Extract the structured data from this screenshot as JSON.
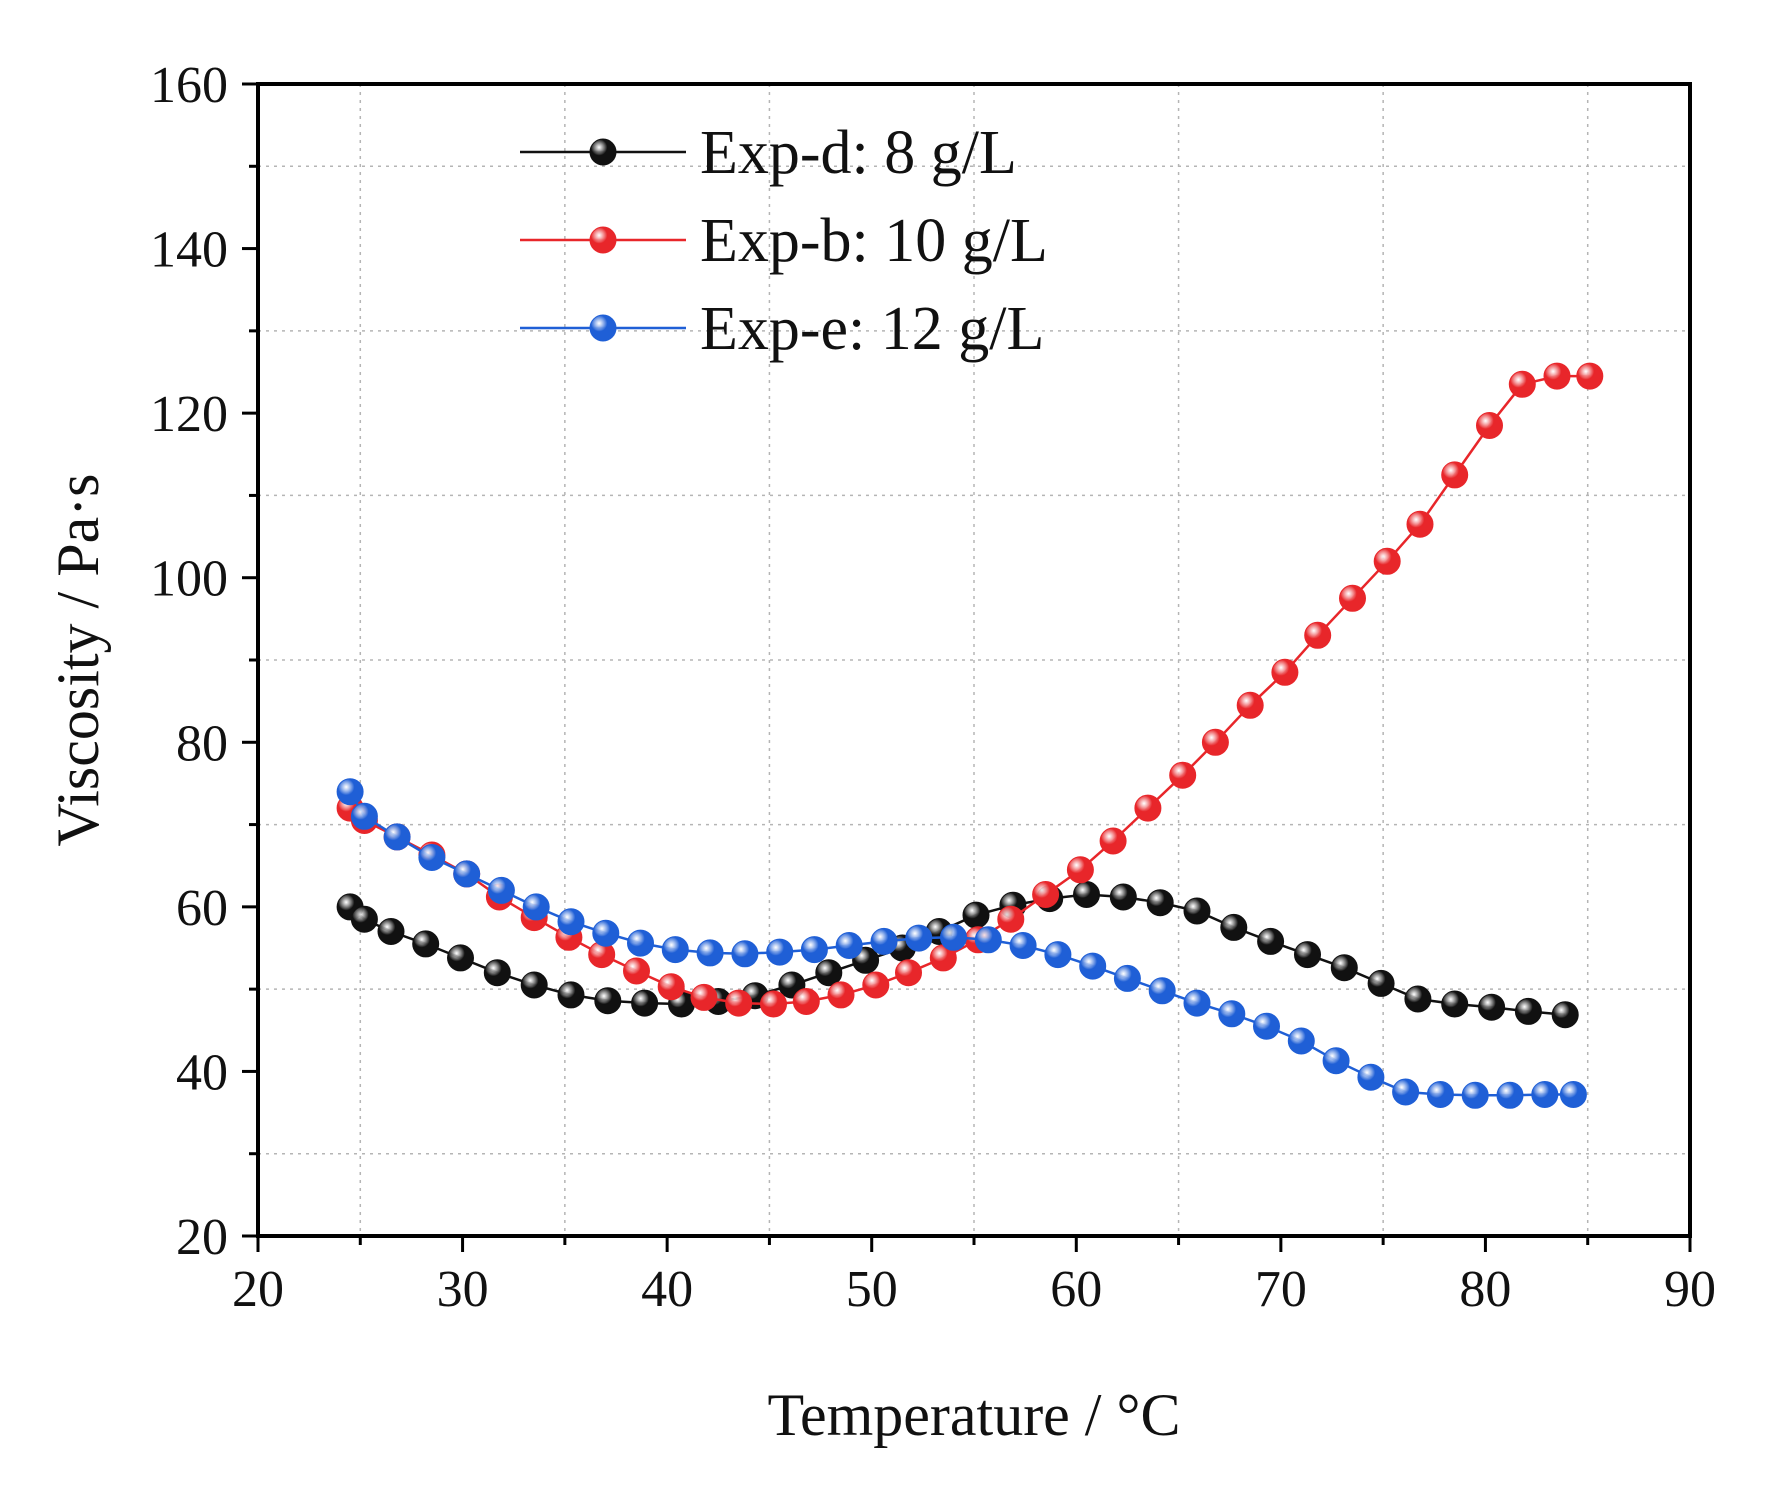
{
  "chart_data": {
    "type": "line",
    "title": "",
    "xlabel": "Temperature / °C",
    "ylabel": "Viscosity / Pa·s",
    "xlim": [
      20,
      90
    ],
    "ylim": [
      20,
      160
    ],
    "xticks": [
      20,
      30,
      40,
      50,
      60,
      70,
      80,
      90
    ],
    "yticks": [
      20,
      40,
      60,
      80,
      100,
      120,
      140,
      160
    ],
    "grid": true,
    "legend_position": "top-left",
    "series": [
      {
        "name": "Exp-d: 8 g/L",
        "color": "#111111",
        "x": [
          24.5,
          25.2,
          26.5,
          28.2,
          29.9,
          31.7,
          33.5,
          35.3,
          37.1,
          38.9,
          40.7,
          42.5,
          44.3,
          46.1,
          47.9,
          49.7,
          51.5,
          53.3,
          55.1,
          56.9,
          58.7,
          60.5,
          62.3,
          64.1,
          65.9,
          67.7,
          69.5,
          71.3,
          73.1,
          74.9,
          76.7,
          78.5,
          80.3,
          82.1,
          83.9
        ],
        "values": [
          60,
          58.5,
          57,
          55.5,
          53.8,
          52,
          50.5,
          49.3,
          48.6,
          48.3,
          48.2,
          48.5,
          49.2,
          50.5,
          52,
          53.5,
          55,
          57,
          59,
          60.2,
          61,
          61.5,
          61.2,
          60.5,
          59.5,
          57.5,
          55.8,
          54.2,
          52.6,
          50.7,
          48.8,
          48.2,
          47.8,
          47.3,
          46.9
        ]
      },
      {
        "name": "Exp-b: 10 g/L",
        "color": "#e8262a",
        "x": [
          24.5,
          25.2,
          26.8,
          28.5,
          30.2,
          31.8,
          33.5,
          35.2,
          36.8,
          38.5,
          40.2,
          41.8,
          43.5,
          45.2,
          46.8,
          48.5,
          50.2,
          51.8,
          53.5,
          55.2,
          56.8,
          58.5,
          60.2,
          61.8,
          63.5,
          65.2,
          66.8,
          68.5,
          70.2,
          71.8,
          73.5,
          75.2,
          76.8,
          78.5,
          80.2,
          81.8,
          83.5,
          85.1
        ],
        "values": [
          72,
          70.5,
          68.5,
          66.3,
          64,
          61.2,
          58.7,
          56.3,
          54.2,
          52.2,
          50.3,
          49,
          48.3,
          48.2,
          48.5,
          49.3,
          50.5,
          52,
          53.8,
          56,
          58.5,
          61.5,
          64.5,
          68,
          72,
          76,
          80,
          84.5,
          88.5,
          93,
          97.5,
          102,
          106.5,
          112.5,
          118.5,
          123.5,
          124.5,
          124.5
        ]
      },
      {
        "name": "Exp-e: 12 g/L",
        "color": "#1f5fd6",
        "x": [
          24.5,
          25.2,
          26.8,
          28.5,
          30.2,
          31.9,
          33.6,
          35.3,
          37.0,
          38.7,
          40.4,
          42.1,
          43.8,
          45.5,
          47.2,
          48.9,
          50.6,
          52.3,
          54.0,
          55.7,
          57.4,
          59.1,
          60.8,
          62.5,
          64.2,
          65.9,
          67.6,
          69.3,
          71.0,
          72.7,
          74.4,
          76.1,
          77.8,
          79.5,
          81.2,
          82.9,
          84.3
        ],
        "values": [
          74,
          71,
          68.5,
          66,
          64,
          62,
          60,
          58.2,
          56.8,
          55.6,
          54.8,
          54.4,
          54.3,
          54.5,
          54.8,
          55.3,
          55.8,
          56.2,
          56.3,
          56,
          55.3,
          54.2,
          52.8,
          51.3,
          49.8,
          48.3,
          47,
          45.5,
          43.7,
          41.3,
          39.3,
          37.5,
          37.2,
          37.1,
          37.1,
          37.2,
          37.2
        ]
      }
    ]
  }
}
